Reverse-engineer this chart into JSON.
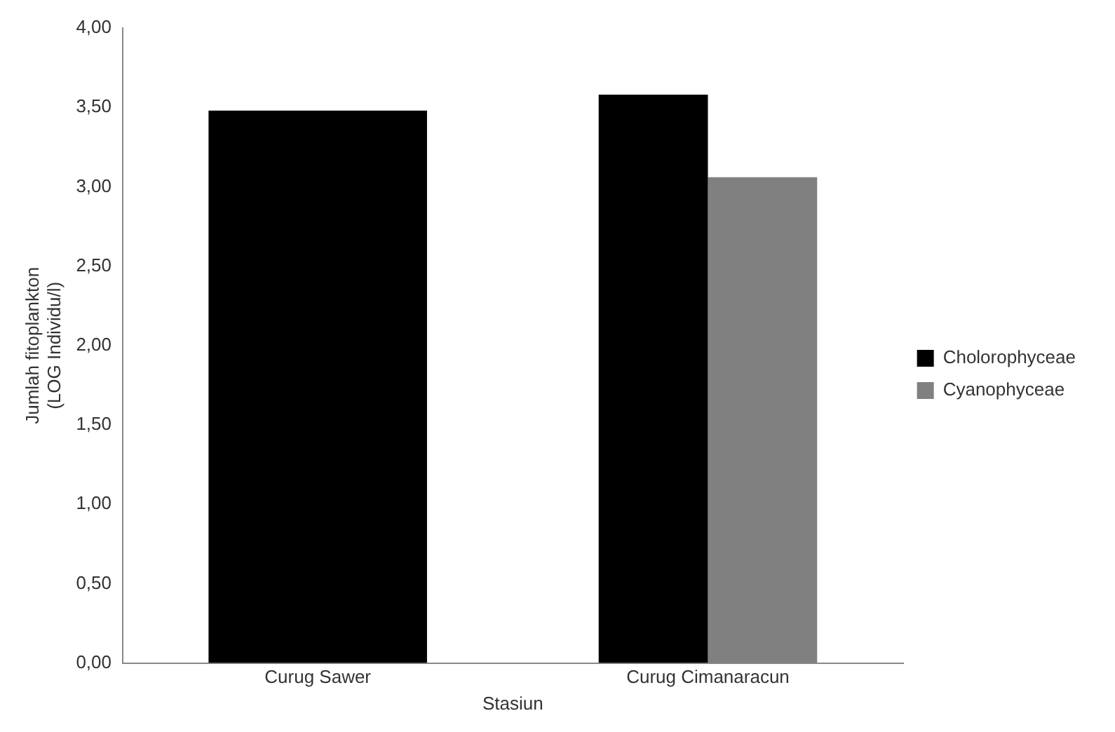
{
  "chart_data": {
    "type": "bar",
    "xlabel": "Stasiun",
    "ylabel": "Jumlah fitoplankton\n(LOG Individu/l)",
    "categories": [
      "Curug Sawer",
      "Curug Cimanaracun"
    ],
    "series": [
      {
        "name": "Cholorophyceae",
        "color": "#000000",
        "values": [
          3.48,
          3.58
        ]
      },
      {
        "name": "Cyanophyceae",
        "color": "#808080",
        "values": [
          null,
          3.06
        ]
      }
    ],
    "ylim": [
      0,
      4
    ],
    "yticks": [
      {
        "value": 0,
        "label": "0,00"
      },
      {
        "value": 0.5,
        "label": "0,50"
      },
      {
        "value": 1,
        "label": "1,00"
      },
      {
        "value": 1.5,
        "label": "1,50"
      },
      {
        "value": 2,
        "label": "2,00"
      },
      {
        "value": 2.5,
        "label": "2,50"
      },
      {
        "value": 3,
        "label": "3,00"
      },
      {
        "value": 3.5,
        "label": "3,50"
      },
      {
        "value": 4,
        "label": "4,00"
      }
    ],
    "grid": false,
    "legend": "right"
  }
}
